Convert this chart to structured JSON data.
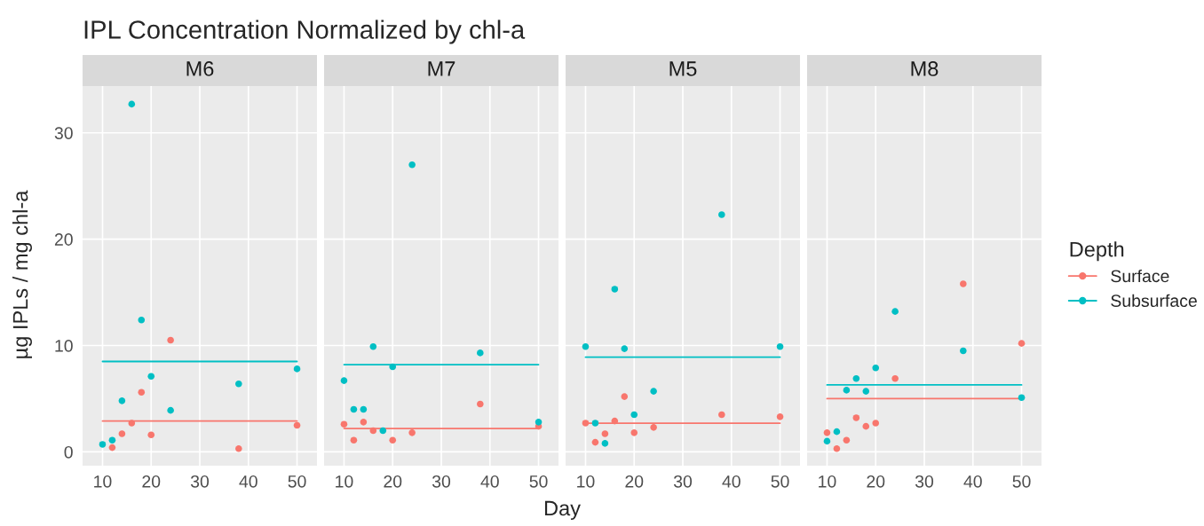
{
  "chart_data": [
    {
      "type": "scatter",
      "title": "M6",
      "ylabel": "µg IPLs / mg chl-a",
      "annotations": [
        "IPL Concentration Normalized by chl-a"
      ],
      "xlim": [
        5.9,
        54.1
      ],
      "ylim": [
        -1.3,
        34.4
      ],
      "xticks": [
        10,
        20,
        30,
        40,
        50
      ],
      "yticks": [
        0,
        10,
        20,
        30
      ],
      "grid": true,
      "marker": "circle",
      "series": [
        {
          "color": "#f8766d",
          "x": [
            12,
            14,
            16,
            18,
            20,
            24,
            38,
            50
          ],
          "values": [
            0.4,
            1.7,
            2.7,
            5.6,
            1.6,
            10.5,
            0.3,
            2.5
          ]
        },
        {
          "color": "#00bfc4",
          "x": [
            10,
            12,
            14,
            16,
            18,
            20,
            24,
            38,
            50
          ],
          "values": [
            0.7,
            1.1,
            4.8,
            32.7,
            12.4,
            7.1,
            3.9,
            6.4,
            7.8
          ]
        },
        {
          "type": "line",
          "marker": "none",
          "color": "#f8766d",
          "x": [
            10,
            50
          ],
          "values": [
            2.9,
            2.9
          ]
        },
        {
          "type": "line",
          "marker": "none",
          "color": "#00bfc4",
          "x": [
            10,
            50
          ],
          "values": [
            8.5,
            8.5
          ]
        }
      ]
    },
    {
      "type": "scatter",
      "title": "M7",
      "xlabel": "Day",
      "xlim": [
        5.9,
        54.1
      ],
      "ylim": [
        -1.3,
        34.4
      ],
      "xticks": [
        10,
        20,
        30,
        40,
        50
      ],
      "yticks": [
        0,
        10,
        20,
        30
      ],
      "tick_labels": "x",
      "grid": true,
      "marker": "circle",
      "series": [
        {
          "color": "#f8766d",
          "x": [
            10,
            12,
            14,
            16,
            20,
            24,
            38,
            50
          ],
          "values": [
            2.6,
            1.1,
            2.8,
            2.0,
            1.1,
            1.8,
            4.5,
            2.4
          ]
        },
        {
          "color": "#00bfc4",
          "x": [
            10,
            12,
            14,
            16,
            18,
            20,
            24,
            38,
            50
          ],
          "values": [
            6.7,
            4.0,
            4.0,
            9.9,
            2.0,
            8.0,
            27.0,
            9.3,
            2.8
          ]
        },
        {
          "type": "line",
          "marker": "none",
          "color": "#f8766d",
          "x": [
            10,
            50
          ],
          "values": [
            2.2,
            2.2
          ]
        },
        {
          "type": "line",
          "marker": "none",
          "color": "#00bfc4",
          "x": [
            10,
            50
          ],
          "values": [
            8.2,
            8.2
          ]
        }
      ]
    },
    {
      "type": "scatter",
      "title": "M5",
      "xlim": [
        5.9,
        54.1
      ],
      "ylim": [
        -1.3,
        34.4
      ],
      "xticks": [
        10,
        20,
        30,
        40,
        50
      ],
      "yticks": [
        0,
        10,
        20,
        30
      ],
      "tick_labels": "x",
      "grid": true,
      "marker": "circle",
      "series": [
        {
          "color": "#f8766d",
          "x": [
            10,
            12,
            14,
            16,
            18,
            20,
            24,
            38,
            50
          ],
          "values": [
            2.7,
            0.9,
            1.7,
            2.9,
            5.2,
            1.8,
            2.3,
            3.5,
            3.3
          ]
        },
        {
          "color": "#00bfc4",
          "x": [
            10,
            12,
            14,
            16,
            18,
            20,
            24,
            38,
            50
          ],
          "values": [
            9.9,
            2.7,
            0.8,
            15.3,
            9.7,
            3.5,
            5.7,
            22.3,
            9.9
          ]
        },
        {
          "type": "line",
          "marker": "none",
          "color": "#f8766d",
          "x": [
            10,
            50
          ],
          "values": [
            2.7,
            2.7
          ]
        },
        {
          "type": "line",
          "marker": "none",
          "color": "#00bfc4",
          "x": [
            10,
            50
          ],
          "values": [
            8.9,
            8.9
          ]
        }
      ]
    },
    {
      "type": "scatter",
      "title": "M8",
      "legend": "right",
      "legend_title": "Depth",
      "xlim": [
        5.9,
        54.1
      ],
      "ylim": [
        -1.3,
        34.4
      ],
      "xticks": [
        10,
        20,
        30,
        40,
        50
      ],
      "yticks": [
        0,
        10,
        20,
        30
      ],
      "tick_labels": "x",
      "grid": true,
      "marker": "circle",
      "series": [
        {
          "name": "Surface",
          "color": "#f8766d",
          "x": [
            10,
            12,
            14,
            16,
            18,
            20,
            24,
            38,
            50
          ],
          "values": [
            1.8,
            0.3,
            1.1,
            3.2,
            2.4,
            2.7,
            6.9,
            15.8,
            10.2
          ]
        },
        {
          "name": "Subsurface",
          "color": "#00bfc4",
          "x": [
            10,
            12,
            14,
            16,
            18,
            20,
            24,
            38,
            50
          ],
          "values": [
            1.0,
            1.9,
            5.8,
            6.9,
            5.7,
            7.9,
            13.2,
            9.5,
            5.1
          ]
        },
        {
          "type": "line",
          "marker": "none",
          "color": "#f8766d",
          "x": [
            10,
            50
          ],
          "values": [
            5.0,
            5.0
          ]
        },
        {
          "type": "line",
          "marker": "none",
          "color": "#00bfc4",
          "x": [
            10,
            50
          ],
          "values": [
            6.3,
            6.3
          ]
        }
      ]
    }
  ]
}
